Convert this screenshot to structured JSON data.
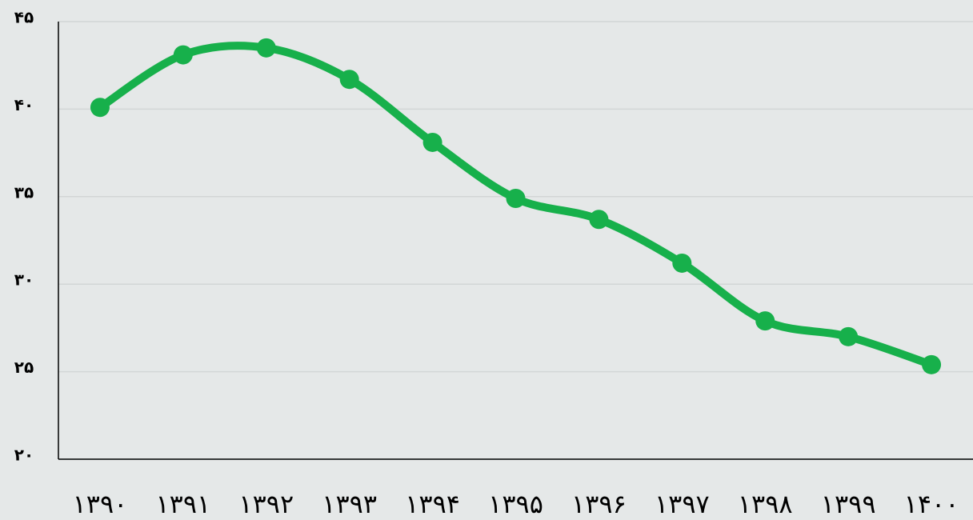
{
  "chart_data": {
    "type": "line",
    "categories": [
      "۱۳۹۰",
      "۱۳۹۱",
      "۱۳۹۲",
      "۱۳۹۳",
      "۱۳۹۴",
      "۱۳۹۵",
      "۱۳۹۶",
      "۱۳۹۷",
      "۱۳۹۸",
      "۱۳۹۹",
      "۱۴۰۰"
    ],
    "values": [
      40.1,
      43.1,
      43.5,
      41.7,
      38.1,
      34.9,
      33.7,
      31.2,
      27.9,
      27.0,
      25.4
    ],
    "color": "#17b04b",
    "ylim": [
      20,
      45
    ],
    "yticks": [
      {
        "value": 20,
        "label": "۲۰"
      },
      {
        "value": 25,
        "label": "۲۵"
      },
      {
        "value": 30,
        "label": "۳۰"
      },
      {
        "value": 35,
        "label": "۳۵"
      },
      {
        "value": 40,
        "label": "۴۰"
      },
      {
        "value": 45,
        "label": "۴۵"
      }
    ],
    "grid": true
  }
}
